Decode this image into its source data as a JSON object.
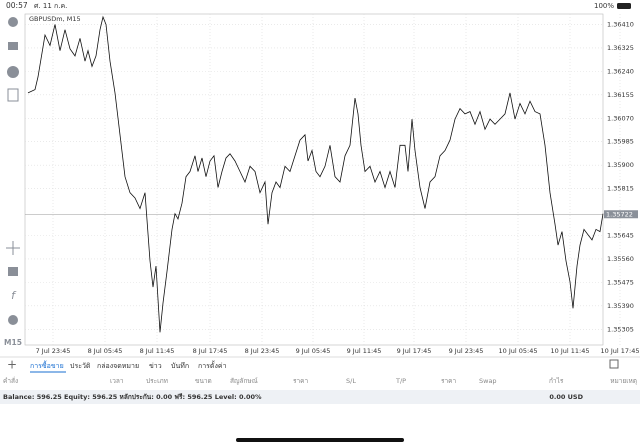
{
  "status_bar": {
    "time": "00:57",
    "date": "ศ. 11 ก.ค.",
    "battery": "100%"
  },
  "chart": {
    "symbol": "GBPUSDm, M15",
    "timeframe": "M15",
    "current_price": {
      "value": 1.35722,
      "label": "1.35722"
    },
    "xlim": [
      0,
      575
    ],
    "xticks": [
      {
        "value": 25,
        "label": "7 Jul 23:45"
      },
      {
        "value": 77,
        "label": "8 Jul 05:45"
      },
      {
        "value": 129,
        "label": "8 Jul 11:45"
      },
      {
        "value": 182,
        "label": "8 Jul 17:45"
      },
      {
        "value": 234,
        "label": "8 Jul 23:45"
      },
      {
        "value": 285,
        "label": "9 Jul 05:45"
      },
      {
        "value": 336,
        "label": "9 Jul 11:45"
      },
      {
        "value": 386,
        "label": "9 Jul 17:45"
      },
      {
        "value": 438,
        "label": "9 Jul 23:45"
      },
      {
        "value": 490,
        "label": "10 Jul 05:45"
      },
      {
        "value": 542,
        "label": "10 Jul 11:45"
      },
      {
        "value": 592,
        "label": "10 Jul 17:45"
      }
    ],
    "ylim": [
      1.35248,
      1.36448
    ],
    "yticks": [
      {
        "value": 1.3641,
        "label": "1.36410"
      },
      {
        "value": 1.36325,
        "label": "1.36325"
      },
      {
        "value": 1.3624,
        "label": "1.36240"
      },
      {
        "value": 1.36155,
        "label": "1.36155"
      },
      {
        "value": 1.3607,
        "label": "1.36070"
      },
      {
        "value": 1.35985,
        "label": "1.35985"
      },
      {
        "value": 1.359,
        "label": "1.35900"
      },
      {
        "value": 1.35815,
        "label": "1.35815"
      },
      {
        "value": 1.35645,
        "label": "1.35645"
      },
      {
        "value": 1.3556,
        "label": "1.35560"
      },
      {
        "value": 1.35475,
        "label": "1.35475"
      },
      {
        "value": 1.3539,
        "label": "1.35390"
      },
      {
        "value": 1.35305,
        "label": "1.35305"
      }
    ],
    "x": [
      0,
      7,
      10,
      17,
      22,
      27,
      32,
      37,
      42,
      47,
      52,
      57,
      60,
      64,
      68,
      72,
      75,
      78,
      82,
      87,
      92,
      97,
      102,
      107,
      112,
      117,
      122,
      125,
      128,
      132,
      135,
      139,
      144,
      147,
      150,
      154,
      158,
      162,
      167,
      170,
      174,
      178,
      182,
      186,
      190,
      194,
      198,
      202,
      207,
      212,
      217,
      222,
      227,
      232,
      237,
      240,
      244,
      248,
      252,
      257,
      262,
      267,
      272,
      277,
      280,
      284,
      288,
      292,
      297,
      302,
      307,
      312,
      317,
      322,
      327,
      330,
      333,
      337,
      342,
      347,
      352,
      357,
      362,
      367,
      372,
      377,
      380,
      384,
      387,
      392,
      397,
      402,
      407,
      412,
      417,
      422,
      427,
      432,
      437,
      442,
      447,
      452,
      457,
      462,
      467,
      472,
      477,
      482,
      487,
      492,
      497,
      502,
      507,
      512,
      517,
      522,
      527,
      530,
      534,
      538,
      542,
      545,
      549,
      552,
      556,
      560,
      564,
      568,
      572,
      575
    ],
    "values": [
      1.36162,
      1.36174,
      1.3622,
      1.36372,
      1.36334,
      1.3641,
      1.36315,
      1.36391,
      1.36322,
      1.36296,
      1.3636,
      1.36277,
      1.36315,
      1.36258,
      1.36296,
      1.36391,
      1.36437,
      1.3641,
      1.36277,
      1.36162,
      1.3601,
      1.35858,
      1.358,
      1.35781,
      1.35743,
      1.358,
      1.35553,
      1.35458,
      1.35534,
      1.35294,
      1.354,
      1.35515,
      1.35667,
      1.35724,
      1.35705,
      1.35762,
      1.35858,
      1.35877,
      1.35934,
      1.35877,
      1.35926,
      1.35858,
      1.35915,
      1.35934,
      1.35819,
      1.35877,
      1.35926,
      1.35941,
      1.35915,
      1.35877,
      1.35839,
      1.35896,
      1.35877,
      1.358,
      1.35839,
      1.35686,
      1.358,
      1.35839,
      1.35819,
      1.35896,
      1.35877,
      1.35934,
      1.35991,
      1.3601,
      1.35915,
      1.35953,
      1.35877,
      1.35858,
      1.35896,
      1.35972,
      1.35858,
      1.35839,
      1.35934,
      1.35972,
      1.36143,
      1.36086,
      1.35972,
      1.35877,
      1.35896,
      1.35839,
      1.35877,
      1.35819,
      1.35877,
      1.35819,
      1.35972,
      1.35972,
      1.35877,
      1.36067,
      1.35953,
      1.35819,
      1.35743,
      1.35839,
      1.35858,
      1.35934,
      1.35953,
      1.35991,
      1.36067,
      1.36105,
      1.36086,
      1.36094,
      1.36048,
      1.36094,
      1.3603,
      1.36067,
      1.36048,
      1.36067,
      1.36086,
      1.36162,
      1.36067,
      1.36124,
      1.36086,
      1.36132,
      1.36094,
      1.36086,
      1.35972,
      1.358,
      1.35686,
      1.3561,
      1.35659,
      1.35553,
      1.35477,
      1.35381,
      1.35534,
      1.3561,
      1.35667,
      1.35648,
      1.35629,
      1.35667,
      1.35659,
      1.35724
    ],
    "color": "#111"
  },
  "tabs": [
    "การซื้อขาย",
    "ประวัติ",
    "กล่องจดหมาย",
    "ข่าว",
    "บันทึก",
    "การตั้งค่า"
  ],
  "table_header": [
    "คำสั่ง",
    "เวลา",
    "ประเภท",
    "ขนาด",
    "สัญลักษณ์",
    "ราคา",
    "S/L",
    "T/P",
    "ราคา",
    "Swap",
    "กำไร",
    "หมายเหตุ"
  ],
  "balance_line": "Balance: 596.25 Equity: 596.25 หลักประกัน: 0.00 ฟรี: 596.25 Level: 0.00%",
  "balance_total": "0.00 USD"
}
